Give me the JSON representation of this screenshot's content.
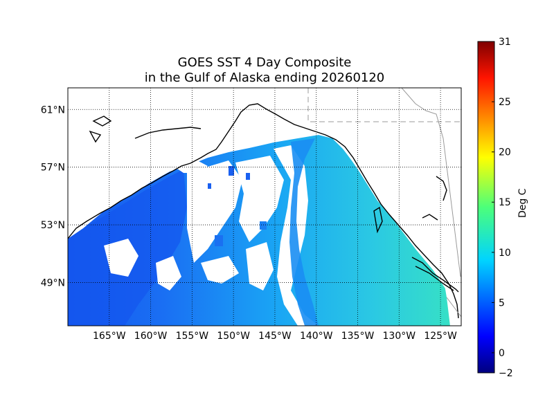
{
  "title_line1": "GOES SST 4 Day Composite",
  "title_line2": "in the Gulf of Alaska ending 20260120",
  "map": {
    "lon_range": [
      -170.0,
      -122.5
    ],
    "lat_range": [
      46.0,
      62.5
    ],
    "lat_ticks": [
      {
        "value": 61,
        "label": "61°N"
      },
      {
        "value": 57,
        "label": "57°N"
      },
      {
        "value": 53,
        "label": "53°N"
      },
      {
        "value": 49,
        "label": "49°N"
      }
    ],
    "lon_ticks": [
      {
        "value": -165,
        "label": "165°W"
      },
      {
        "value": -160,
        "label": "160°W"
      },
      {
        "value": -155,
        "label": "155°W"
      },
      {
        "value": -150,
        "label": "150°W"
      },
      {
        "value": -145,
        "label": "145°W"
      },
      {
        "value": -140,
        "label": "140°W"
      },
      {
        "value": -135,
        "label": "135°W"
      },
      {
        "value": -130,
        "label": "130°W"
      },
      {
        "value": -125,
        "label": "125°W"
      }
    ],
    "grid": "dotted",
    "ocean_color_west": "#1a4cf0",
    "ocean_color_mid": "#1a96f5",
    "ocean_color_east": "#2de0c8",
    "coastline_color": "#000000",
    "border_color": "#999999"
  },
  "colorbar": {
    "label": "Deg C",
    "min": -2,
    "max": 31,
    "ticks": [
      {
        "value": 31,
        "label": "31"
      },
      {
        "value": 25,
        "label": "25"
      },
      {
        "value": 20,
        "label": "20"
      },
      {
        "value": 15,
        "label": "15"
      },
      {
        "value": 10,
        "label": "10"
      },
      {
        "value": 5,
        "label": "5"
      },
      {
        "value": 0,
        "label": "0"
      },
      {
        "value": -2,
        "label": "−2"
      }
    ],
    "colormap": "jet"
  }
}
